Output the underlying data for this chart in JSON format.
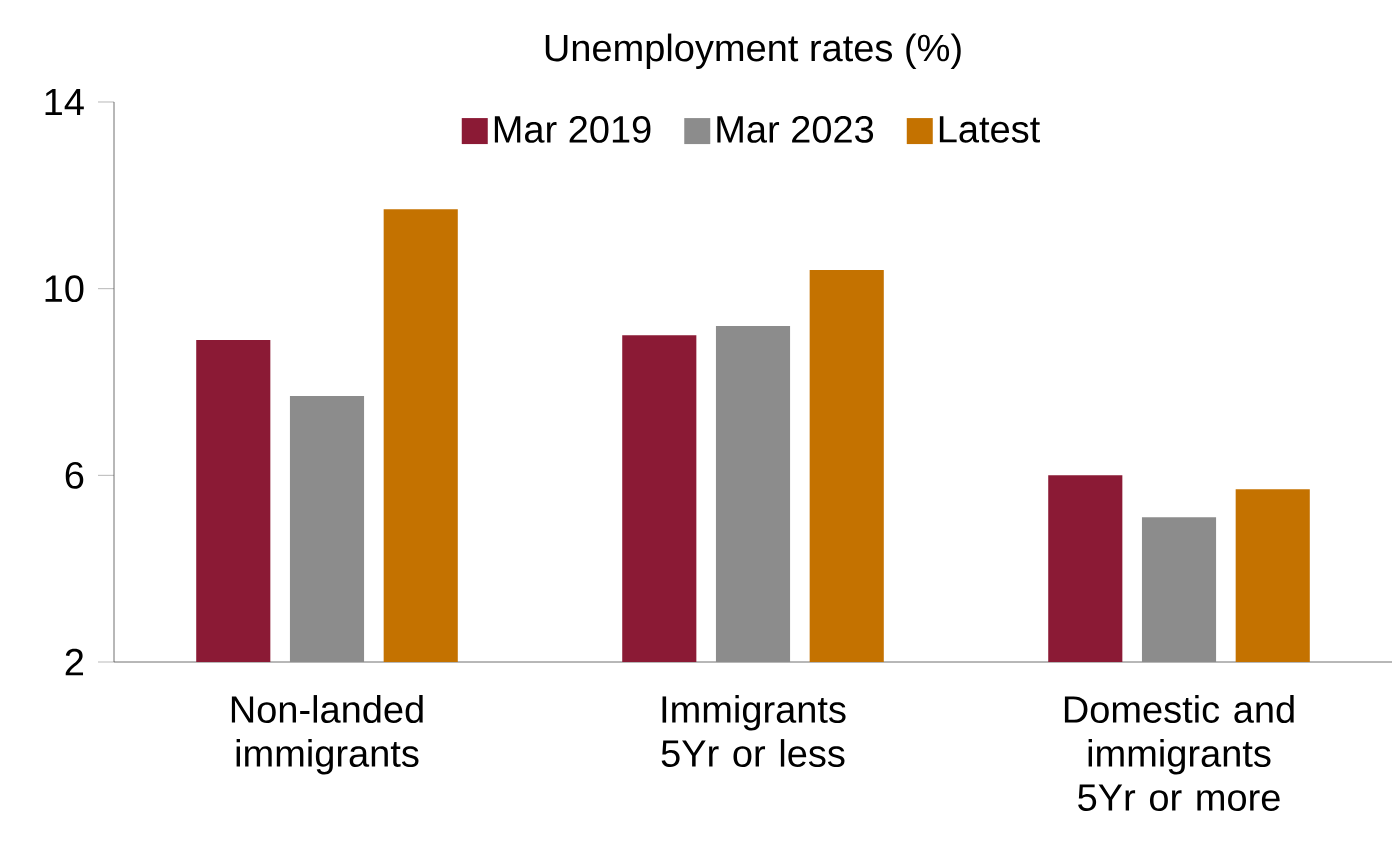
{
  "chart_data": {
    "type": "bar",
    "title": "Unemployment rates (%)",
    "categories": [
      "Non-landed immigrants",
      "Immigrants 5Yr or less",
      "Domestic and immigrants 5Yr or more"
    ],
    "series": [
      {
        "name": "Mar 2019",
        "color": "#8b1a35",
        "values": [
          8.9,
          9.0,
          6.0
        ]
      },
      {
        "name": "Mar 2023",
        "color": "#8c8c8c",
        "values": [
          7.7,
          9.2,
          5.1
        ]
      },
      {
        "name": "Latest",
        "color": "#c47200",
        "values": [
          11.7,
          10.4,
          5.7
        ]
      }
    ],
    "ylim": [
      2,
      14
    ],
    "yticks": [
      2,
      6,
      10,
      14
    ],
    "grid": false,
    "legend": "top"
  }
}
